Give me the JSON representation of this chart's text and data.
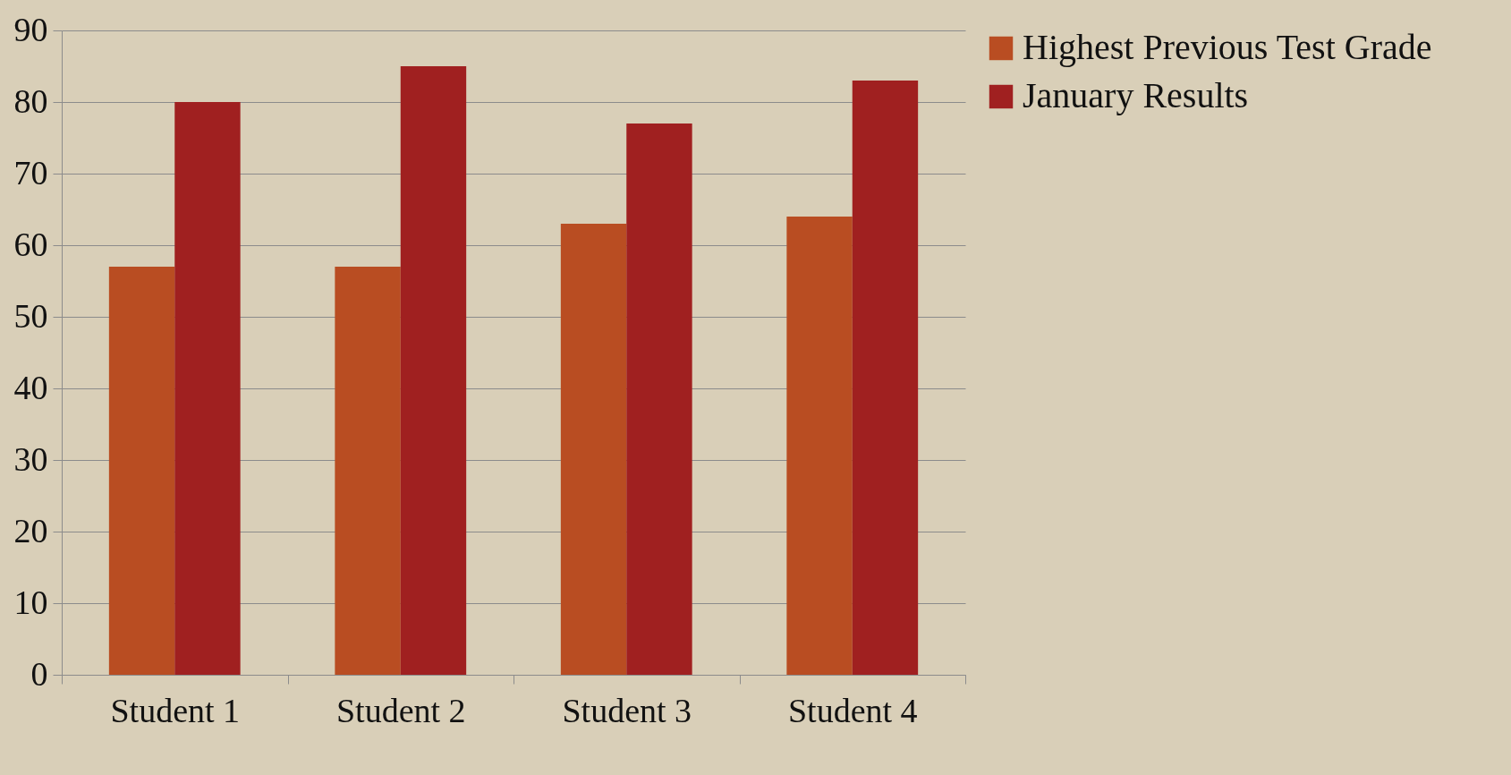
{
  "chart_data": {
    "type": "bar",
    "categories": [
      "Student 1",
      "Student 2",
      "Student 3",
      "Student 4"
    ],
    "series": [
      {
        "name": "Highest Previous Test Grade",
        "color": "#b94d22",
        "values": [
          57,
          57,
          63,
          64
        ]
      },
      {
        "name": "January Results",
        "color": "#a02020",
        "values": [
          80,
          85,
          77,
          83
        ]
      }
    ],
    "ylim": [
      0,
      90
    ],
    "yticks": [
      0,
      10,
      20,
      30,
      40,
      50,
      60,
      70,
      80,
      90
    ],
    "grid": "y",
    "legend": "right"
  }
}
